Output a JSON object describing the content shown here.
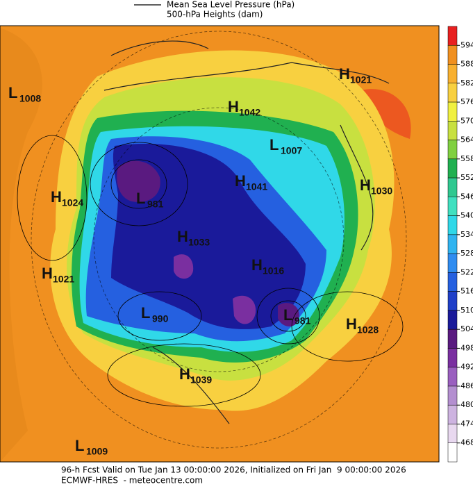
{
  "header": {
    "legend_line": "Mean Sea Level Pressure (hPa)",
    "legend_fill": "500-hPa Heights (dam)"
  },
  "colorbar": {
    "ticks": [
      594,
      588,
      582,
      576,
      570,
      564,
      558,
      552,
      546,
      540,
      534,
      528,
      522,
      516,
      510,
      504,
      498,
      492,
      486,
      480,
      474,
      468
    ],
    "colors": [
      "#e82020",
      "#f09020",
      "#f8b030",
      "#f8d040",
      "#f0f040",
      "#c8e040",
      "#80d040",
      "#20b050",
      "#30c890",
      "#40e0c0",
      "#30d8e8",
      "#30b4f0",
      "#2f8cf0",
      "#2560e0",
      "#1f3fc8",
      "#1a1a9a",
      "#5a1a80",
      "#7a2fa0",
      "#9a5fbf",
      "#b48fd0",
      "#cdb3e0",
      "#e8d8ef",
      "#ffffff"
    ]
  },
  "centers": [
    {
      "kind": "L",
      "value": "1008"
    },
    {
      "kind": "H",
      "value": "1021"
    },
    {
      "kind": "H",
      "value": "1042"
    },
    {
      "kind": "L",
      "value": "1007"
    },
    {
      "kind": "H",
      "value": "1041"
    },
    {
      "kind": "H",
      "value": "1030"
    },
    {
      "kind": "H",
      "value": "1024"
    },
    {
      "kind": "L",
      "value": "981"
    },
    {
      "kind": "H",
      "value": "1033"
    },
    {
      "kind": "H",
      "value": "1021"
    },
    {
      "kind": "H",
      "value": "1016"
    },
    {
      "kind": "L",
      "value": "990"
    },
    {
      "kind": "L",
      "value": "981"
    },
    {
      "kind": "H",
      "value": "1028"
    },
    {
      "kind": "H",
      "value": "1039"
    },
    {
      "kind": "L",
      "value": "1009"
    }
  ],
  "footer": {
    "valid": "96-h Fcst Valid on Tue Jan 13 00:00:00 2026, Initialized on Fri Jan  9 00:00:00 2026",
    "source": "ECMWF-HRES  - meteocentre.com"
  }
}
